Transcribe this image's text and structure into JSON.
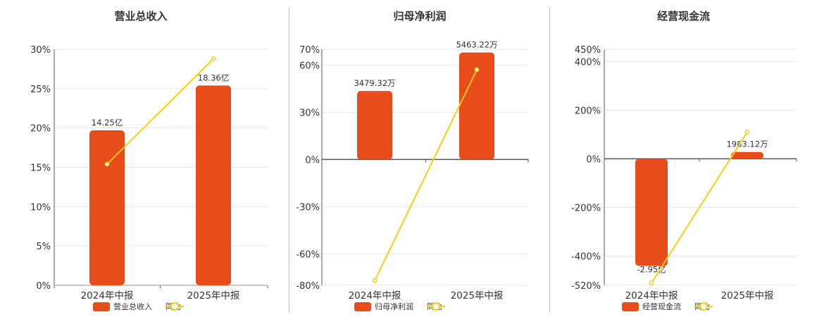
{
  "colors": {
    "bar": "#e84c1a",
    "line": "#f5cf14",
    "grid": "#e6e6e6",
    "axis": "#555555",
    "text": "#333333"
  },
  "chart_data": [
    {
      "type": "bar",
      "title": "营业总收入",
      "categories": [
        "2024年中报",
        "2025年中报"
      ],
      "ylim": [
        0,
        30
      ],
      "yticks": [
        "0%",
        "5%",
        "10%",
        "15%",
        "20%",
        "25%",
        "30%"
      ],
      "ytick_values": [
        0,
        5,
        10,
        15,
        20,
        25,
        30
      ],
      "series": [
        {
          "name": "营业总收入",
          "values": [
            19.7,
            25.4
          ],
          "labels": [
            "14.25亿",
            "18.36亿"
          ]
        },
        {
          "name": "同比",
          "type": "line",
          "values": [
            15.4,
            28.8
          ]
        }
      ],
      "legend": [
        "营业总收入",
        "同比"
      ],
      "legend_position": "bottom"
    },
    {
      "type": "bar",
      "title": "归母净利润",
      "categories": [
        "2024年中报",
        "2025年中报"
      ],
      "ylim": [
        -80,
        70
      ],
      "yticks": [
        "-80%",
        "-60%",
        "-30%",
        "0%",
        "30%",
        "60%",
        "70%"
      ],
      "ytick_values": [
        -80,
        -60,
        -30,
        0,
        30,
        60,
        70
      ],
      "series": [
        {
          "name": "归母净利润",
          "values": [
            43.5,
            68
          ],
          "labels": [
            "3479.32万",
            "5463.22万"
          ]
        },
        {
          "name": "同比",
          "type": "line",
          "values": [
            -77,
            57
          ]
        }
      ],
      "legend": [
        "归母净利润",
        "同比"
      ],
      "legend_position": "bottom"
    },
    {
      "type": "bar",
      "title": "经营现金流",
      "categories": [
        "2024年中报",
        "2025年中报"
      ],
      "ylim": [
        -520,
        450
      ],
      "yticks": [
        "-520%",
        "-400%",
        "-200%",
        "0%",
        "200%",
        "400%",
        "450%"
      ],
      "ytick_values": [
        -520,
        -400,
        -200,
        0,
        200,
        400,
        450
      ],
      "series": [
        {
          "name": "经营现金流",
          "values": [
            -440,
            28
          ],
          "labels": [
            "-2.95亿",
            "1983.12万"
          ]
        },
        {
          "name": "同比",
          "type": "line",
          "values": [
            -510,
            110
          ]
        }
      ],
      "legend": [
        "经营现金流",
        "同比"
      ],
      "legend_position": "bottom"
    }
  ]
}
